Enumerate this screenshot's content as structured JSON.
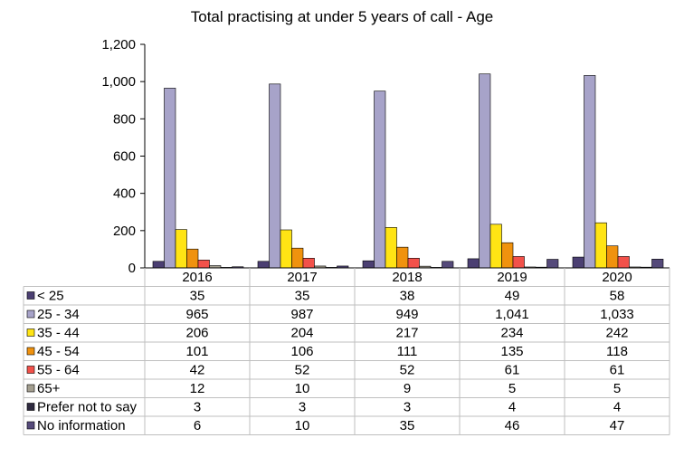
{
  "chart_data": {
    "type": "bar",
    "title": "Total practising at under 5 years of call - Age",
    "xlabel": "",
    "ylabel": "",
    "categories": [
      "2016",
      "2017",
      "2018",
      "2019",
      "2020"
    ],
    "ylim": [
      0,
      1200
    ],
    "yticks": [
      0,
      200,
      400,
      600,
      800,
      1000,
      1200
    ],
    "ytick_labels": [
      "0",
      "200",
      "400",
      "600",
      "800",
      "1,000",
      "1,200"
    ],
    "grid": false,
    "legend": "data-table",
    "series": [
      {
        "name": "< 25",
        "color": "#4b3f72",
        "values": [
          35,
          35,
          38,
          49,
          58
        ],
        "labels": [
          "35",
          "35",
          "38",
          "49",
          "58"
        ]
      },
      {
        "name": "25 - 34",
        "color": "#a7a3c9",
        "values": [
          965,
          987,
          949,
          1041,
          1033
        ],
        "labels": [
          "965",
          "987",
          "949",
          "1,041",
          "1,033"
        ]
      },
      {
        "name": "35 - 44",
        "color": "#ffe414",
        "values": [
          206,
          204,
          217,
          234,
          242
        ],
        "labels": [
          "206",
          "204",
          "217",
          "234",
          "242"
        ]
      },
      {
        "name": "45 - 54",
        "color": "#f0920e",
        "values": [
          101,
          106,
          111,
          135,
          118
        ],
        "labels": [
          "101",
          "106",
          "111",
          "135",
          "118"
        ]
      },
      {
        "name": "55 - 64",
        "color": "#f2514a",
        "values": [
          42,
          52,
          52,
          61,
          61
        ],
        "labels": [
          "42",
          "52",
          "52",
          "61",
          "61"
        ]
      },
      {
        "name": "65+",
        "color": "#a39e8f",
        "values": [
          12,
          10,
          9,
          5,
          5
        ],
        "labels": [
          "12",
          "10",
          "9",
          "5",
          "5"
        ]
      },
      {
        "name": "Prefer not to say",
        "color": "#2e2a3f",
        "values": [
          3,
          3,
          3,
          4,
          4
        ],
        "labels": [
          "3",
          "3",
          "3",
          "4",
          "4"
        ]
      },
      {
        "name": "No information",
        "color": "#554a7a",
        "values": [
          6,
          10,
          35,
          46,
          47
        ],
        "labels": [
          "6",
          "10",
          "35",
          "46",
          "47"
        ]
      }
    ]
  }
}
